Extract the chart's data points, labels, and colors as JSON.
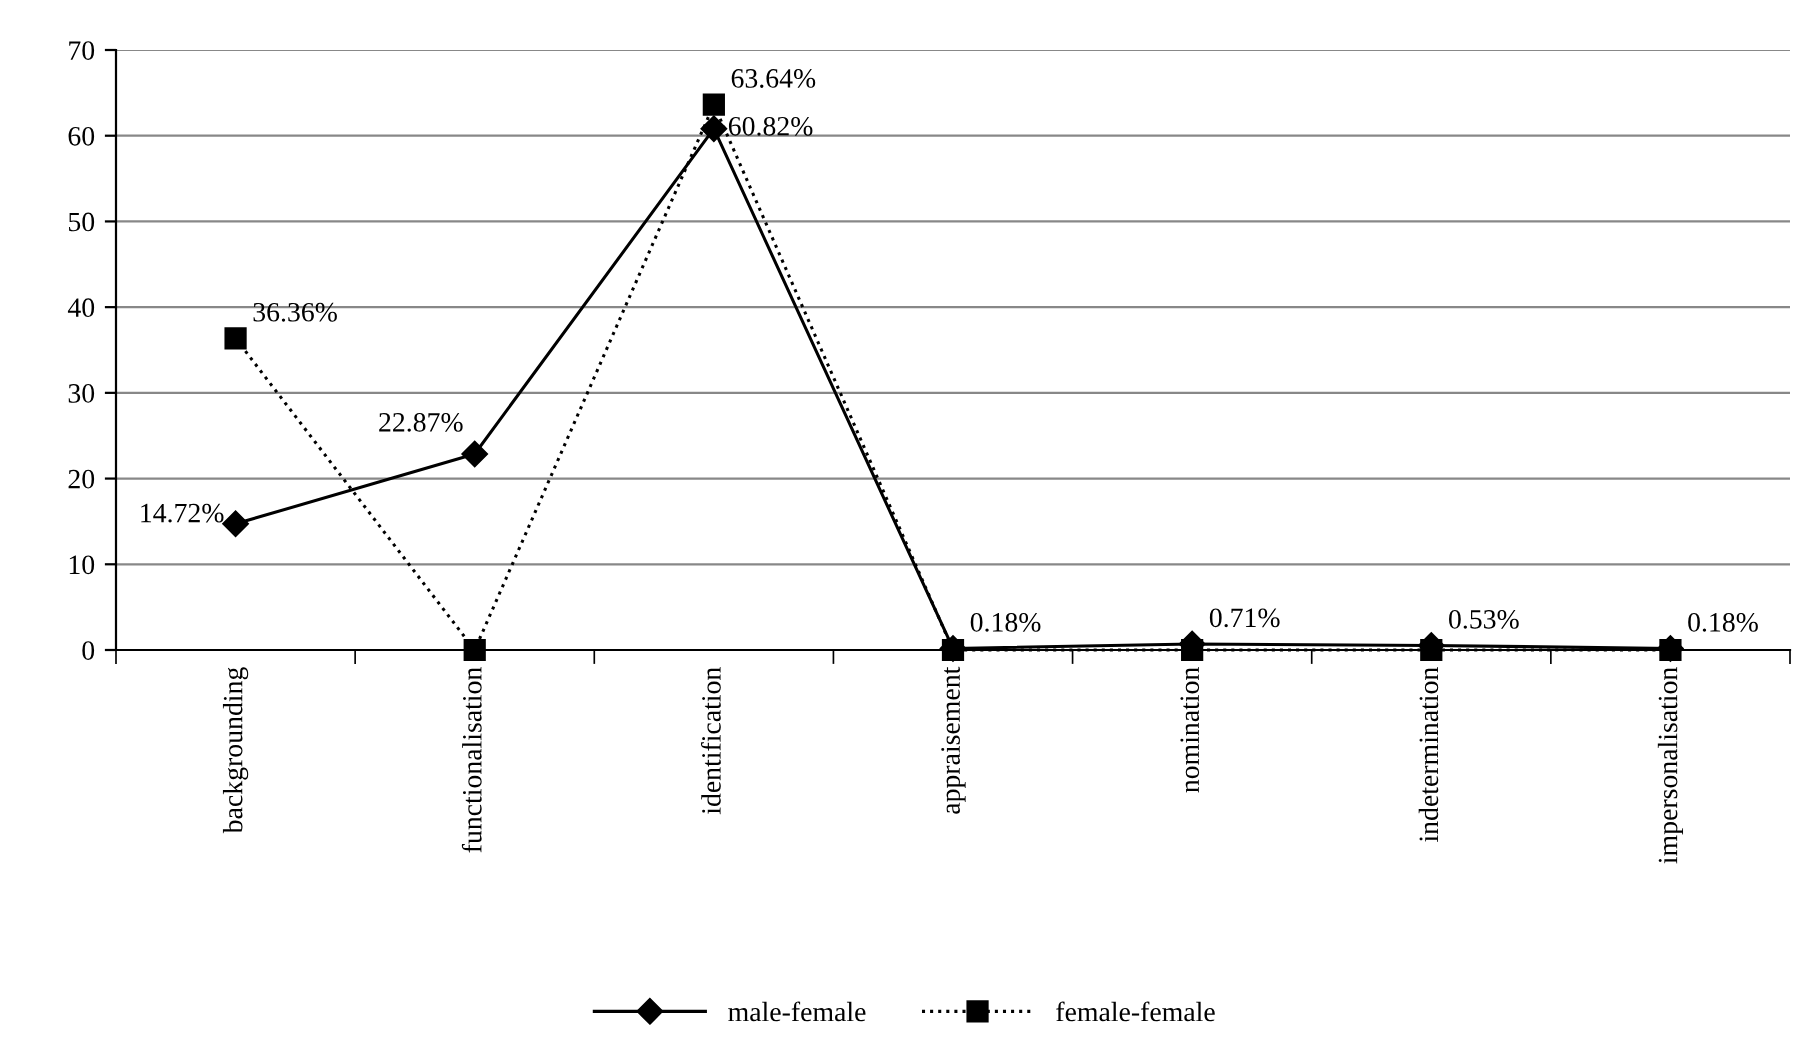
{
  "chart_data": {
    "type": "line",
    "categories": [
      "backgrounding",
      "functionalisation",
      "identification",
      "appraisement",
      "nomination",
      "indetermination",
      "impersonalisation"
    ],
    "series": [
      {
        "name": "male-female",
        "color": "#000000",
        "marker": "diamond",
        "line_style": "solid",
        "values": [
          14.72,
          22.87,
          60.82,
          0.18,
          0.71,
          0.53,
          0.18
        ],
        "value_labels": [
          "14.72%",
          "22.87%",
          "60.82%",
          "0.18%",
          "0.71%",
          "0.53%",
          "0.18%"
        ]
      },
      {
        "name": "female-female",
        "color": "#000000",
        "marker": "square",
        "line_style": "dotted",
        "values": [
          36.36,
          0,
          63.64,
          0,
          0,
          0,
          0
        ],
        "value_labels": [
          "36.36%",
          null,
          "63.64%",
          null,
          null,
          null,
          null
        ]
      }
    ],
    "ylim": [
      0,
      70
    ],
    "yticks": [
      0,
      10,
      20,
      30,
      40,
      50,
      60,
      70
    ],
    "grid": "y",
    "legend": "bottom"
  }
}
